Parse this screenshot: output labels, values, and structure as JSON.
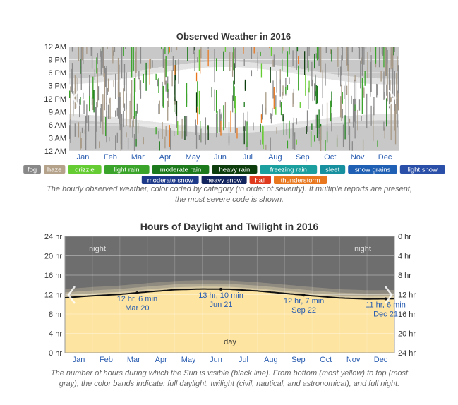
{
  "chart_data": [
    {
      "type": "heatmap",
      "title": "Observed Weather in 2016",
      "y_tick_labels": [
        "12 AM",
        "9 PM",
        "6 PM",
        "3 PM",
        "12 PM",
        "9 AM",
        "6 AM",
        "3 AM",
        "12 AM"
      ],
      "x_tick_labels": [
        "Jan",
        "Feb",
        "Mar",
        "Apr",
        "May",
        "Jun",
        "Jul",
        "Aug",
        "Sep",
        "Oct",
        "Nov",
        "Dec"
      ],
      "legend": [
        {
          "label": "fog",
          "color": "#888888"
        },
        {
          "label": "haze",
          "color": "#b5a28a"
        },
        {
          "label": "drizzle",
          "color": "#66cc33"
        },
        {
          "label": "light rain",
          "color": "#3aa32a"
        },
        {
          "label": "moderate rain",
          "color": "#1c7a1c"
        },
        {
          "label": "heavy rain",
          "color": "#0d3d0d"
        },
        {
          "label": "freezing rain",
          "color": "#1a9e9e"
        },
        {
          "label": "sleet",
          "color": "#168f9e"
        },
        {
          "label": "snow grains",
          "color": "#1f5fb4"
        },
        {
          "label": "light snow",
          "color": "#2a4fa8"
        },
        {
          "label": "moderate snow",
          "color": "#1d3a8a"
        },
        {
          "label": "heavy snow",
          "color": "#12245e"
        },
        {
          "label": "hail",
          "color": "#e03a1e"
        },
        {
          "label": "thunderstorm",
          "color": "#e8771e"
        }
      ],
      "caption": "The hourly observed weather, color coded by category (in order of severity). If multiple reports are present, the most severe code is shown."
    },
    {
      "type": "area",
      "title": "Hours of Daylight and Twilight in 2016",
      "x_tick_labels": [
        "Jan",
        "Feb",
        "Mar",
        "Apr",
        "May",
        "Jun",
        "Jul",
        "Aug",
        "Sep",
        "Oct",
        "Nov",
        "Dec"
      ],
      "y_left_ticks": [
        "24 hr",
        "20 hr",
        "16 hr",
        "12 hr",
        "8 hr",
        "4 hr",
        "0 hr"
      ],
      "y_right_ticks": [
        "0 hr",
        "4 hr",
        "8 hr",
        "12 hr",
        "16 hr",
        "20 hr",
        "24 hr"
      ],
      "ylim": [
        0,
        24
      ],
      "daylight_hours_monthly": [
        11.35,
        11.75,
        12.05,
        12.55,
        13.0,
        13.15,
        13.1,
        12.75,
        12.25,
        11.75,
        11.3,
        11.1,
        11.15
      ],
      "twilight_extra_hours": {
        "civil": 0.5,
        "nautical": 1.1,
        "astronomical": 1.8
      },
      "annotations": [
        {
          "line1": "12 hr, 6 min",
          "line2": "Mar 20",
          "x_month": 2.63,
          "hours": 12.1
        },
        {
          "line1": "13 hr, 10 min",
          "line2": "Jun 21",
          "x_month": 5.68,
          "hours": 13.17
        },
        {
          "line1": "12 hr, 7 min",
          "line2": "Sep 22",
          "x_month": 8.7,
          "hours": 12.12
        },
        {
          "line1": "11 hr, 6 min",
          "line2": "Dec 21",
          "x_month": 11.68,
          "hours": 11.1
        }
      ],
      "region_labels": {
        "night_left": "night",
        "night_right": "night",
        "day": "day"
      },
      "colors": {
        "night": "#6e6e6e",
        "astronomical": "#8f8a80",
        "nautical": "#b3aa94",
        "civil": "#d6c9a4",
        "day": "#fde4a0"
      },
      "caption": "The number of hours during which the Sun is visible (black line). From bottom (most yellow) to top (most gray), the color bands indicate: full daylight, twilight (civil, nautical, and astronomical), and full night."
    }
  ]
}
